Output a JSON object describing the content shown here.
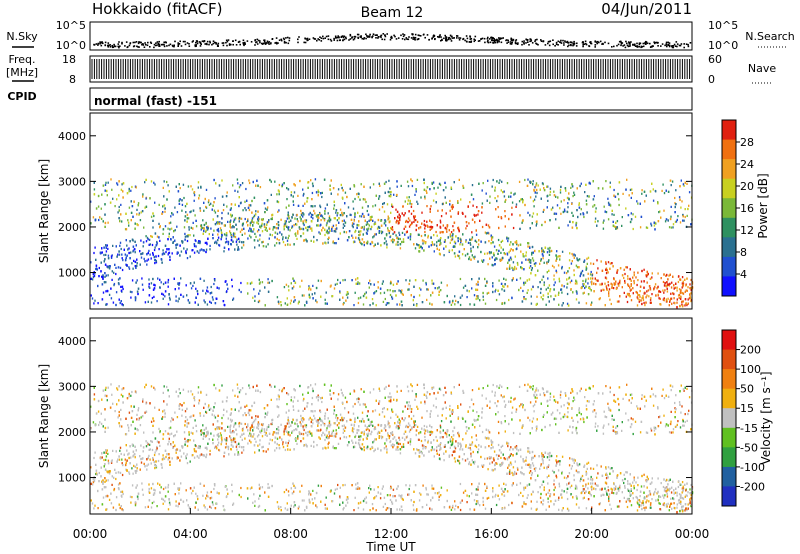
{
  "header": {
    "title": "Hokkaido (fitACF)",
    "beam": "Beam 12",
    "date": "04/Jun/2011"
  },
  "params": {
    "nsky_label": "N.Sky",
    "nsky_ticks": [
      "10^5",
      "10^0"
    ],
    "nsearch_label": "N.Search",
    "nsearch_ticks": [
      "10^5",
      "10^0"
    ],
    "freq_label": "Freq.",
    "freq_unit": "[MHz]",
    "freq_ticks": [
      "18",
      "8"
    ],
    "nave_label": "Nave",
    "nave_ticks": [
      "60",
      "0"
    ],
    "cpid_label": "CPID",
    "cpid_value": "normal (fast) -151"
  },
  "chart_data": [
    {
      "type": "heatmap",
      "ylabel": "Slant Range [km]",
      "xlabel": "",
      "colorbar_label": "Power [dB]",
      "yticks": [
        "1000",
        "2000",
        "3000",
        "4000"
      ],
      "ylim": [
        200,
        4500
      ],
      "colorbar_ticks": [
        "4",
        "8",
        "12",
        "16",
        "20",
        "24",
        "28"
      ],
      "colorbar_range": [
        0,
        30
      ],
      "colorbar_colors": [
        "#1010ff",
        "#2050d0",
        "#2a7090",
        "#2e9060",
        "#7ab838",
        "#c8d020",
        "#f0a020",
        "#f07010",
        "#e02010"
      ],
      "scatter_bands": [
        {
          "t0": 0.0,
          "t1": 5.0,
          "rmin": 1000,
          "rmax": 3300,
          "level": "mixed"
        },
        {
          "t0": 5.0,
          "t1": 12.0,
          "rmin": 1500,
          "rmax": 3300,
          "level": "mid"
        },
        {
          "t0": 12.0,
          "t1": 18.0,
          "rmin": 1500,
          "rmax": 3400,
          "level": "high"
        },
        {
          "t0": 18.0,
          "t1": 24.0,
          "rmin": 800,
          "rmax": 2900,
          "level": "high"
        }
      ]
    },
    {
      "type": "heatmap",
      "ylabel": "Slant Range [km]",
      "xlabel": "Time UT",
      "colorbar_label": "Velocity [m s⁻¹]",
      "yticks": [
        "1000",
        "2000",
        "3000",
        "4000"
      ],
      "ylim": [
        200,
        4500
      ],
      "xticks": [
        "00:00",
        "04:00",
        "08:00",
        "12:00",
        "16:00",
        "20:00",
        "00:00"
      ],
      "xlim": [
        0,
        24
      ],
      "colorbar_ticks": [
        "200",
        "100",
        "50",
        "15",
        "-15",
        "-50",
        "-100",
        "-200"
      ],
      "colorbar_colors": [
        "#2030c0",
        "#2060a0",
        "#30a040",
        "#60c020",
        "#c0c0c0",
        "#f0b010",
        "#f08010",
        "#e05010",
        "#e01010"
      ]
    }
  ]
}
